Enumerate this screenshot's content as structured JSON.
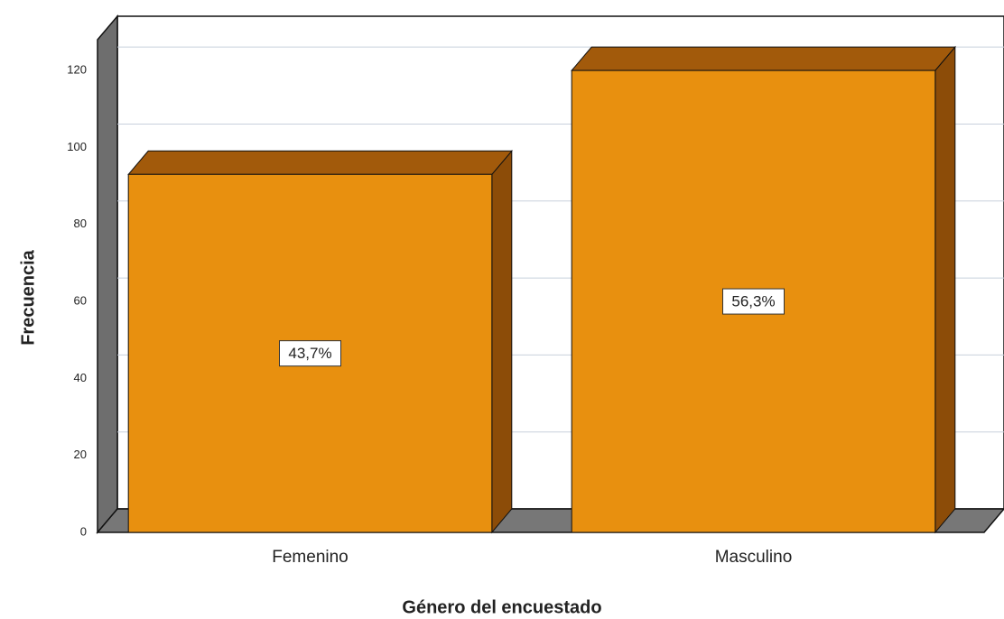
{
  "chart_data": {
    "type": "bar3d",
    "x_label": "Género del encuestado",
    "y_label": "Frecuencia",
    "categories": [
      "Femenino",
      "Masculino"
    ],
    "values": [
      93,
      120
    ],
    "percentages": [
      43.7,
      56.3
    ],
    "percentage_labels": [
      "43,7%",
      "56,3%"
    ],
    "color": "#e8900f",
    "ylim": [
      0,
      128
    ],
    "yticks": [
      0,
      20,
      40,
      60,
      80,
      100,
      120
    ],
    "grid": true
  }
}
